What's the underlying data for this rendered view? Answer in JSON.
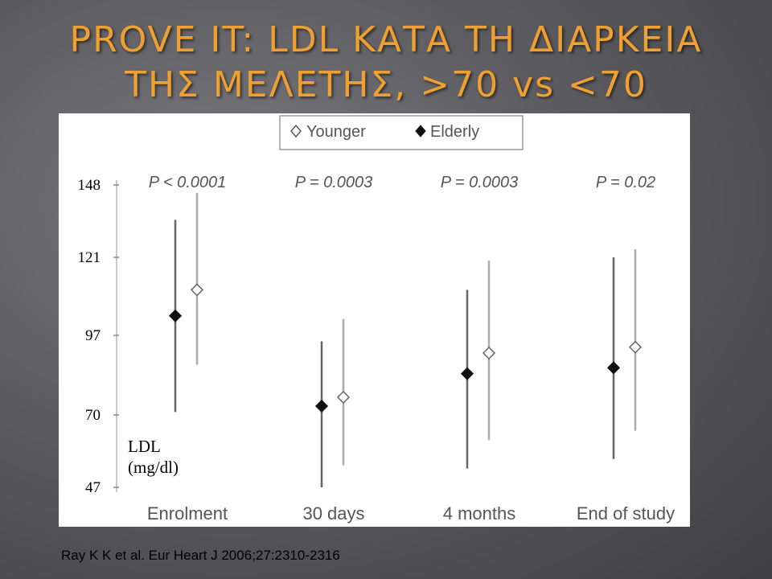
{
  "title": {
    "line1": "PROVE IT: LDL ΚΑΤΑ ΤΗ ΔΙΑΡΚΕΙΑ",
    "line2": "ΤΗΣ ΜΕΛΕΤΗΣ, >70 vs <70"
  },
  "citation": "Ray K K et al. Eur Heart J 2006;27:2310-2316",
  "chart_data": {
    "type": "scatter",
    "categories": [
      "Enrolment",
      "30 days",
      "4 months",
      "End of study"
    ],
    "ylabel": "LDL\n(mg/dl)",
    "ylabel_lines": [
      "LDL",
      "(mg/dl)"
    ],
    "yticks": [
      148,
      121,
      97,
      70,
      47
    ],
    "ylim": [
      47,
      148
    ],
    "legend": {
      "position": "top-center",
      "items": [
        "Younger",
        "Elderly"
      ]
    },
    "p_values": [
      "P < 0.0001",
      "P = 0.0003",
      "P = 0.0003",
      "P = 0.02"
    ],
    "series": [
      {
        "name": "Elderly",
        "marker": "filled-diamond",
        "values": [
          103,
          73,
          84,
          86
        ],
        "low": [
          71,
          47,
          53,
          56
        ],
        "high": [
          135,
          95,
          111,
          121
        ]
      },
      {
        "name": "Younger",
        "marker": "open-diamond",
        "values": [
          111,
          76,
          91,
          93
        ],
        "low": [
          87,
          54,
          62,
          65
        ],
        "high": [
          145,
          102,
          120,
          124
        ]
      }
    ]
  }
}
